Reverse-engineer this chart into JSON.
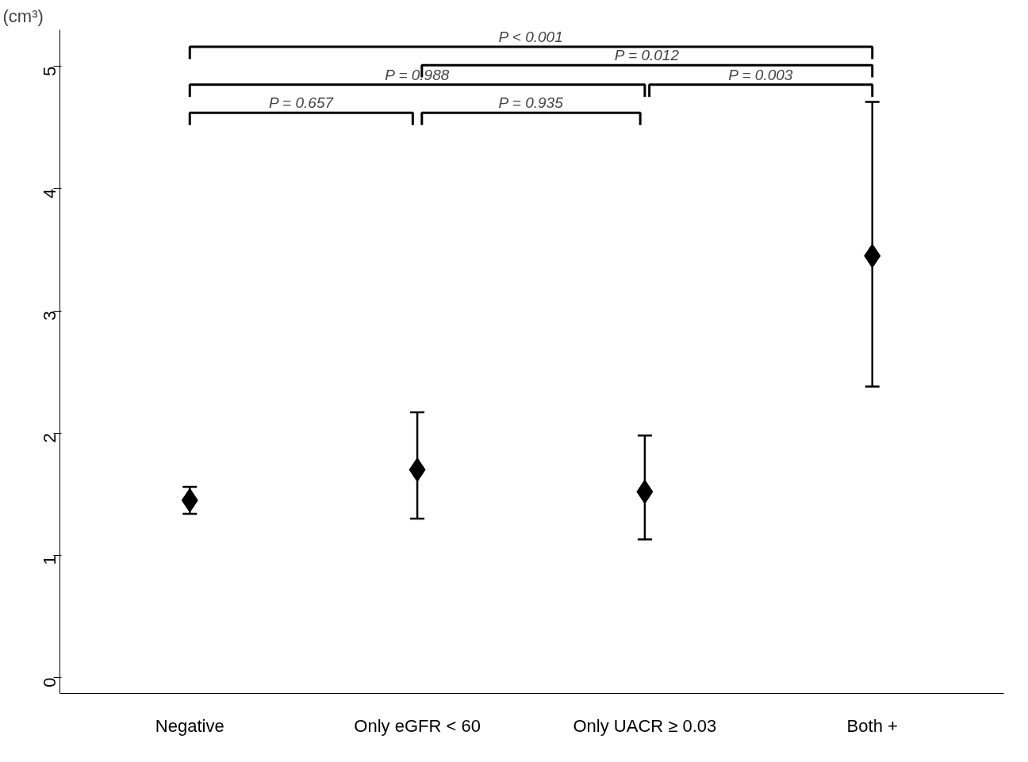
{
  "chart_data": {
    "type": "scatter",
    "ylabel": "(cm³)",
    "categories": [
      "Negative",
      "Only eGFR < 60",
      "Only UACR ≥ 0.03",
      "Both +"
    ],
    "series": [
      {
        "color": "#000000",
        "values": [
          1.45,
          1.7,
          1.52,
          3.45
        ],
        "errors": [
          [
            1.34,
            1.56
          ],
          [
            1.3,
            2.17
          ],
          [
            1.13,
            1.98
          ],
          [
            2.38,
            4.71
          ]
        ]
      }
    ],
    "marker": "diamond",
    "ylim": [
      -0.13,
      5.3
    ],
    "yticks": [
      0,
      1,
      2,
      3,
      4,
      5
    ],
    "grid": false,
    "annotations": [
      "P < 0.001",
      "P = 0.012",
      "P = 0.988",
      "P = 0.003",
      "P = 0.657",
      "P = 0.935"
    ]
  }
}
